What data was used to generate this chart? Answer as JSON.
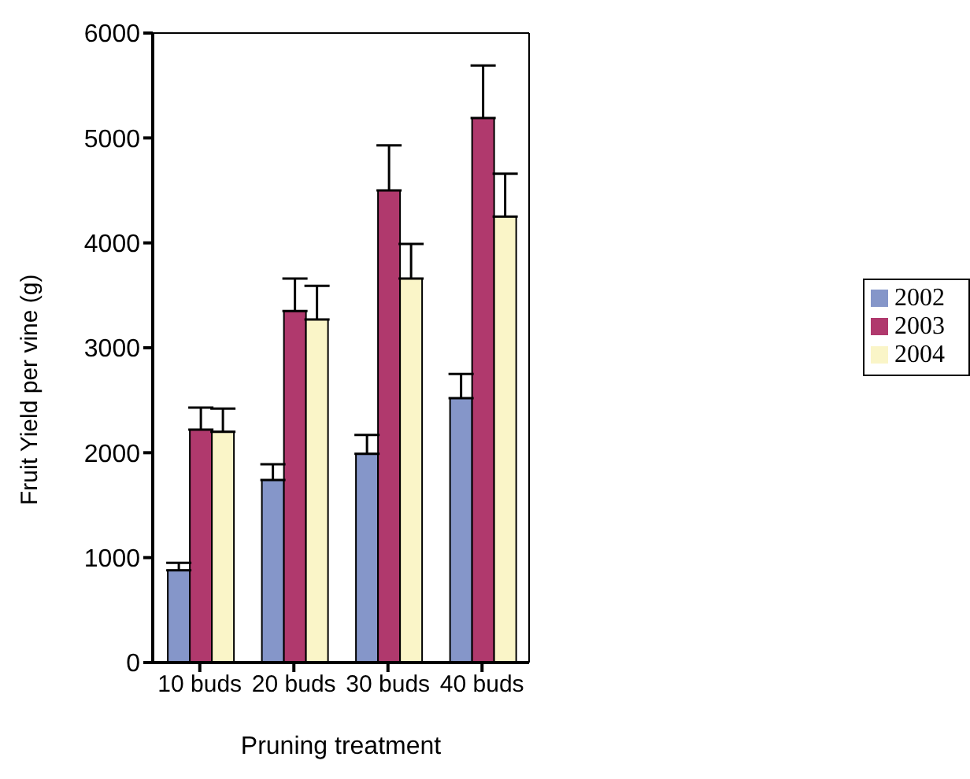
{
  "chart_data": {
    "type": "bar",
    "xlabel": "Pruning treatment",
    "ylabel": "Fruit Yield per vine (g)",
    "categories": [
      "10 buds",
      "20 buds",
      "30 buds",
      "40 buds"
    ],
    "series": [
      {
        "name": "2002",
        "color": "#8596c9",
        "values": [
          880,
          1740,
          1990,
          2520
        ],
        "errors": [
          [
            880,
            950
          ],
          [
            1740,
            1890
          ],
          [
            1990,
            2170
          ],
          [
            2520,
            2750
          ]
        ]
      },
      {
        "name": "2003",
        "color": "#b0396d",
        "values": [
          2220,
          3350,
          4500,
          5190
        ],
        "errors": [
          [
            2220,
            2430
          ],
          [
            3350,
            3660
          ],
          [
            4500,
            4930
          ],
          [
            5190,
            5690
          ]
        ]
      },
      {
        "name": "2004",
        "color": "#faf5c8",
        "values": [
          2200,
          3270,
          3660,
          4250
        ],
        "errors": [
          [
            2200,
            2420
          ],
          [
            3270,
            3590
          ],
          [
            3660,
            3990
          ],
          [
            4250,
            4660
          ]
        ]
      }
    ],
    "ylim": [
      0,
      6000
    ],
    "yticks": [
      0,
      1000,
      2000,
      3000,
      4000,
      5000,
      6000
    ],
    "legend": "right"
  }
}
